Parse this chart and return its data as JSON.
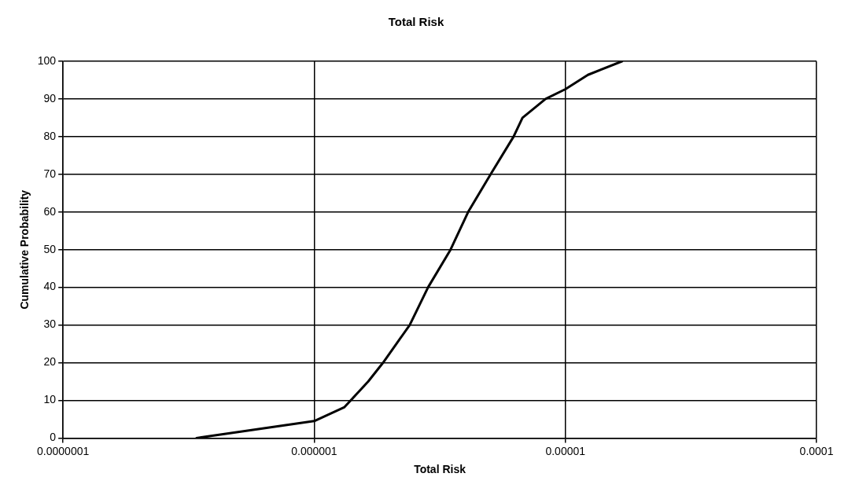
{
  "chart_data": {
    "type": "line",
    "title": "Total Risk",
    "xlabel": "Total Risk",
    "ylabel": "Cumulative Probability",
    "log": "x",
    "grid": true,
    "marker": "none",
    "line_style": "solid",
    "xlim": [
      1e-07,
      0.0001
    ],
    "xticks": [
      {
        "value": 1e-07,
        "label": "0.0000001"
      },
      {
        "value": 1e-06,
        "label": "0.000001"
      },
      {
        "value": 1e-05,
        "label": "0.00001"
      },
      {
        "value": 0.0001,
        "label": "0.0001"
      }
    ],
    "ylim": [
      0,
      100
    ],
    "yticks": [
      0,
      10,
      20,
      30,
      40,
      50,
      60,
      70,
      80,
      90,
      100
    ],
    "series": [
      {
        "color": "#000000",
        "x": [
          3.4e-07,
          1e-06,
          1.32e-06,
          1.64e-06,
          1.88e-06,
          2.4e-06,
          2.84e-06,
          3.49e-06,
          4.1e-06,
          5.04e-06,
          6.22e-06,
          6.75e-06,
          8.34e-06,
          1e-05,
          1.23e-05,
          1.68e-05
        ],
        "values": [
          0,
          4.5,
          8.2,
          15,
          20,
          30,
          40,
          50,
          60,
          70,
          80,
          85,
          90,
          92.6,
          96.4,
          100
        ]
      }
    ]
  }
}
